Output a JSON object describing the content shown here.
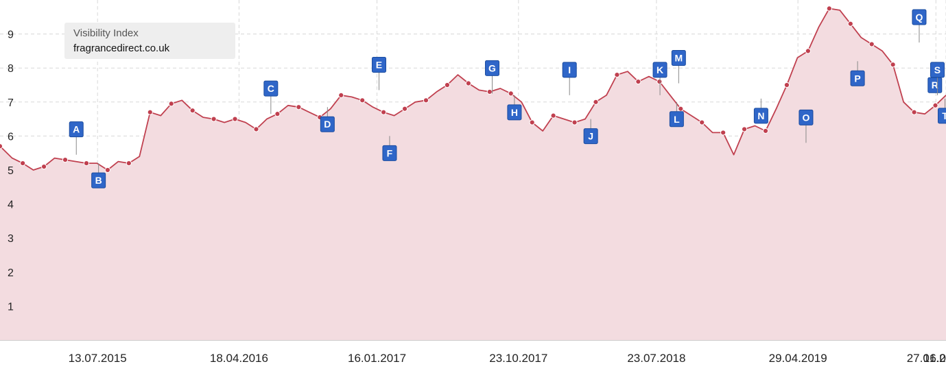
{
  "colors": {
    "line": "#c0404f",
    "area": "#f3dce0",
    "marker": "#2f66c8",
    "marker_border": "#1a4b9e",
    "grid": "#d8d8d8",
    "axis_text": "#222222",
    "legend_bg": "#eeeeee"
  },
  "legend": {
    "title": "Visibility Index",
    "domain": "fragrancedirect.co.uk"
  },
  "chart_data": {
    "type": "area",
    "title": "",
    "xlabel": "",
    "ylabel": "",
    "ylim": [
      0,
      10
    ],
    "yticks": [
      1,
      2,
      3,
      4,
      5,
      6,
      7,
      8,
      9
    ],
    "xlim": [
      "2015-01-01",
      "2020-02-16"
    ],
    "xticks": [
      "2015-07-13",
      "2016-04-18",
      "2017-01-16",
      "2017-10-23",
      "2018-07-23",
      "2019-04-29",
      "2020-01-27",
      "2020-02-16"
    ],
    "xtick_labels": [
      "13.07.2015",
      "18.04.2016",
      "16.01.2017",
      "23.10.2017",
      "23.07.2018",
      "29.04.2019",
      "27.01.2020",
      "16.02.20"
    ],
    "grid": true,
    "legend_position": "top-left",
    "series": [
      {
        "x": [
          "2015-01-01",
          "2015-01-25",
          "2015-02-15",
          "2015-03-08",
          "2015-03-29",
          "2015-04-19",
          "2015-05-10",
          "2015-05-31",
          "2015-06-21",
          "2015-07-12",
          "2015-08-02",
          "2015-08-23",
          "2015-09-13",
          "2015-10-04",
          "2015-10-25",
          "2015-11-15",
          "2015-12-06",
          "2015-12-27",
          "2016-01-17",
          "2016-02-07",
          "2016-02-28",
          "2016-03-20",
          "2016-04-10",
          "2016-05-01",
          "2016-05-22",
          "2016-06-12",
          "2016-07-03",
          "2016-07-24",
          "2016-08-14",
          "2016-09-04",
          "2016-09-25",
          "2016-10-16",
          "2016-11-06",
          "2016-11-27",
          "2016-12-18",
          "2017-01-08",
          "2017-01-29",
          "2017-02-19",
          "2017-03-12",
          "2017-04-02",
          "2017-04-23",
          "2017-05-14",
          "2017-06-04",
          "2017-06-25",
          "2017-07-16",
          "2017-08-06",
          "2017-08-27",
          "2017-09-17",
          "2017-10-08",
          "2017-10-29",
          "2017-11-19",
          "2017-12-10",
          "2017-12-31",
          "2018-01-21",
          "2018-02-11",
          "2018-03-04",
          "2018-03-25",
          "2018-04-15",
          "2018-05-06",
          "2018-05-27",
          "2018-06-17",
          "2018-07-08",
          "2018-07-29",
          "2018-08-19",
          "2018-09-09",
          "2018-09-30",
          "2018-10-21",
          "2018-11-11",
          "2018-12-02",
          "2018-12-23",
          "2019-01-13",
          "2019-02-03",
          "2019-02-24",
          "2019-03-17",
          "2019-04-07",
          "2019-04-28",
          "2019-05-19",
          "2019-06-09",
          "2019-06-30",
          "2019-07-21",
          "2019-08-11",
          "2019-09-01",
          "2019-09-22",
          "2019-10-13",
          "2019-11-03",
          "2019-11-24",
          "2019-12-15",
          "2020-01-05",
          "2020-01-26",
          "2020-02-16"
        ],
        "values": [
          5.7,
          5.35,
          5.2,
          5.0,
          5.1,
          5.35,
          5.3,
          5.25,
          5.2,
          5.2,
          5.0,
          5.25,
          5.2,
          5.4,
          6.7,
          6.6,
          6.95,
          7.05,
          6.75,
          6.55,
          6.5,
          6.4,
          6.5,
          6.4,
          6.2,
          6.5,
          6.65,
          6.9,
          6.85,
          6.7,
          6.55,
          6.8,
          7.2,
          7.15,
          7.05,
          6.85,
          6.7,
          6.6,
          6.8,
          7.0,
          7.05,
          7.3,
          7.5,
          7.8,
          7.55,
          7.35,
          7.3,
          7.4,
          7.25,
          7.0,
          6.4,
          6.15,
          6.6,
          6.5,
          6.4,
          6.5,
          7.0,
          7.2,
          7.8,
          7.9,
          7.6,
          7.75,
          7.6,
          7.2,
          6.8,
          6.6,
          6.4,
          6.1,
          6.1,
          5.45,
          6.2,
          6.3,
          6.15,
          6.8,
          7.5,
          8.3,
          8.5,
          9.2,
          9.75,
          9.7,
          9.3,
          8.9,
          8.7,
          8.5,
          8.1,
          7.0,
          6.7,
          6.65,
          6.9,
          7.2
        ]
      }
    ],
    "markers": [
      {
        "label": "A",
        "x": "2015-06-01",
        "y": 5.45
      },
      {
        "label": "B",
        "x": "2015-07-15",
        "y": 5.2
      },
      {
        "label": "C",
        "x": "2016-06-20",
        "y": 6.65
      },
      {
        "label": "D",
        "x": "2016-10-10",
        "y": 6.85
      },
      {
        "label": "E",
        "x": "2017-01-20",
        "y": 7.35
      },
      {
        "label": "F",
        "x": "2017-02-10",
        "y": 6.0
      },
      {
        "label": "G",
        "x": "2017-09-01",
        "y": 7.25
      },
      {
        "label": "H",
        "x": "2017-10-15",
        "y": 7.2
      },
      {
        "label": "I",
        "x": "2018-02-01",
        "y": 7.2
      },
      {
        "label": "J",
        "x": "2018-03-15",
        "y": 6.5
      },
      {
        "label": "K",
        "x": "2018-07-30",
        "y": 7.2
      },
      {
        "label": "L",
        "x": "2018-09-01",
        "y": 7.0
      },
      {
        "label": "M",
        "x": "2018-09-05",
        "y": 7.55
      },
      {
        "label": "N",
        "x": "2019-02-15",
        "y": 7.1
      },
      {
        "label": "O",
        "x": "2019-05-15",
        "y": 5.8
      },
      {
        "label": "P",
        "x": "2019-08-25",
        "y": 8.2
      },
      {
        "label": "Q",
        "x": "2019-12-25",
        "y": 8.75
      },
      {
        "label": "R",
        "x": "2020-01-25",
        "y": 8.0
      },
      {
        "label": "S",
        "x": "2020-01-30",
        "y": 7.2
      },
      {
        "label": "T",
        "x": "2020-02-14",
        "y": 7.1
      }
    ]
  }
}
